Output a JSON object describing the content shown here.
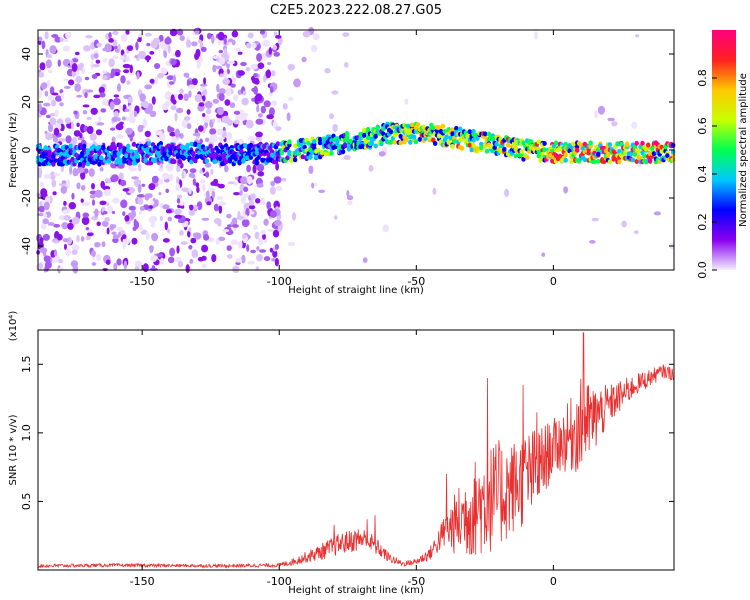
{
  "figure": {
    "title": "C2E5.2023.222.08.27.G05"
  },
  "chart_data": [
    {
      "type": "heatmap",
      "xlabel": "Height of straight line (km)",
      "ylabel": "Frequency (Hz)",
      "xlim": [
        -188,
        44
      ],
      "ylim": [
        -50,
        50
      ],
      "xticks": [
        -150,
        -100,
        -50,
        0
      ],
      "yticks": [
        -40,
        -20,
        0,
        20,
        40
      ],
      "colorbar": {
        "label": "Normalized spectral amplitude",
        "range": [
          0,
          1
        ],
        "ticks": [
          "0.0",
          "0.2",
          "0.4",
          "0.6",
          "0.8"
        ],
        "colors": [
          "#f4eefe",
          "#8a00f0",
          "#0000ff",
          "#00c8ff",
          "#00ff50",
          "#c8ff00",
          "#ffc800",
          "#ff2020",
          "#ff0080"
        ]
      },
      "ridge": {
        "description_points_x": [
          -165,
          -140,
          -115,
          -100,
          -85,
          -70,
          -60,
          -50,
          -40,
          -30,
          -20,
          -10,
          0,
          10,
          20,
          30,
          44
        ],
        "description_points_y": [
          -2,
          -1,
          -2,
          -1,
          1,
          4,
          7,
          7,
          6,
          4,
          2,
          0,
          -1,
          -1,
          -1,
          -1,
          -1
        ]
      }
    },
    {
      "type": "line",
      "xlabel": "Height of straight line (km)",
      "ylabel": "SNR (10 * v/v)",
      "exponent_label": "(x10⁴)",
      "xlim": [
        -188,
        44
      ],
      "ylim": [
        0,
        17500
      ],
      "xticks": [
        -150,
        -100,
        -50,
        0
      ],
      "yticks": [
        {
          "v": 5000,
          "t": "0.5"
        },
        {
          "v": 10000,
          "t": "1.0"
        },
        {
          "v": 15000,
          "t": "1.5"
        }
      ],
      "color": "#e83030",
      "envelope_x": [
        -188,
        -160,
        -120,
        -100,
        -95,
        -85,
        -78,
        -70,
        -65,
        -60,
        -55,
        -50,
        -45,
        -40,
        -35,
        -30,
        -25,
        -20,
        -15,
        -10,
        -5,
        0,
        5,
        10,
        15,
        20,
        30,
        40,
        44
      ],
      "envelope_mid": [
        300,
        350,
        300,
        350,
        600,
        1300,
        1900,
        2300,
        1800,
        900,
        450,
        600,
        1200,
        2700,
        3500,
        4300,
        5000,
        5500,
        6000,
        6700,
        7500,
        9000,
        9600,
        10500,
        11000,
        12000,
        13500,
        14500,
        14300
      ],
      "envelope_amp": [
        120,
        120,
        120,
        150,
        250,
        600,
        800,
        900,
        700,
        350,
        200,
        250,
        500,
        1200,
        2500,
        3500,
        4000,
        4000,
        3500,
        3500,
        3000,
        2000,
        2500,
        3500,
        2500,
        1500,
        800,
        500,
        500
      ],
      "peaks": [
        [
          -80,
          3300
        ],
        [
          -68,
          3700
        ],
        [
          -65,
          4000
        ],
        [
          -39,
          7000
        ],
        [
          -24,
          14000
        ],
        [
          -11,
          13500
        ],
        [
          -6,
          11500
        ],
        [
          11,
          17300
        ],
        [
          16,
          12500
        ]
      ]
    }
  ]
}
